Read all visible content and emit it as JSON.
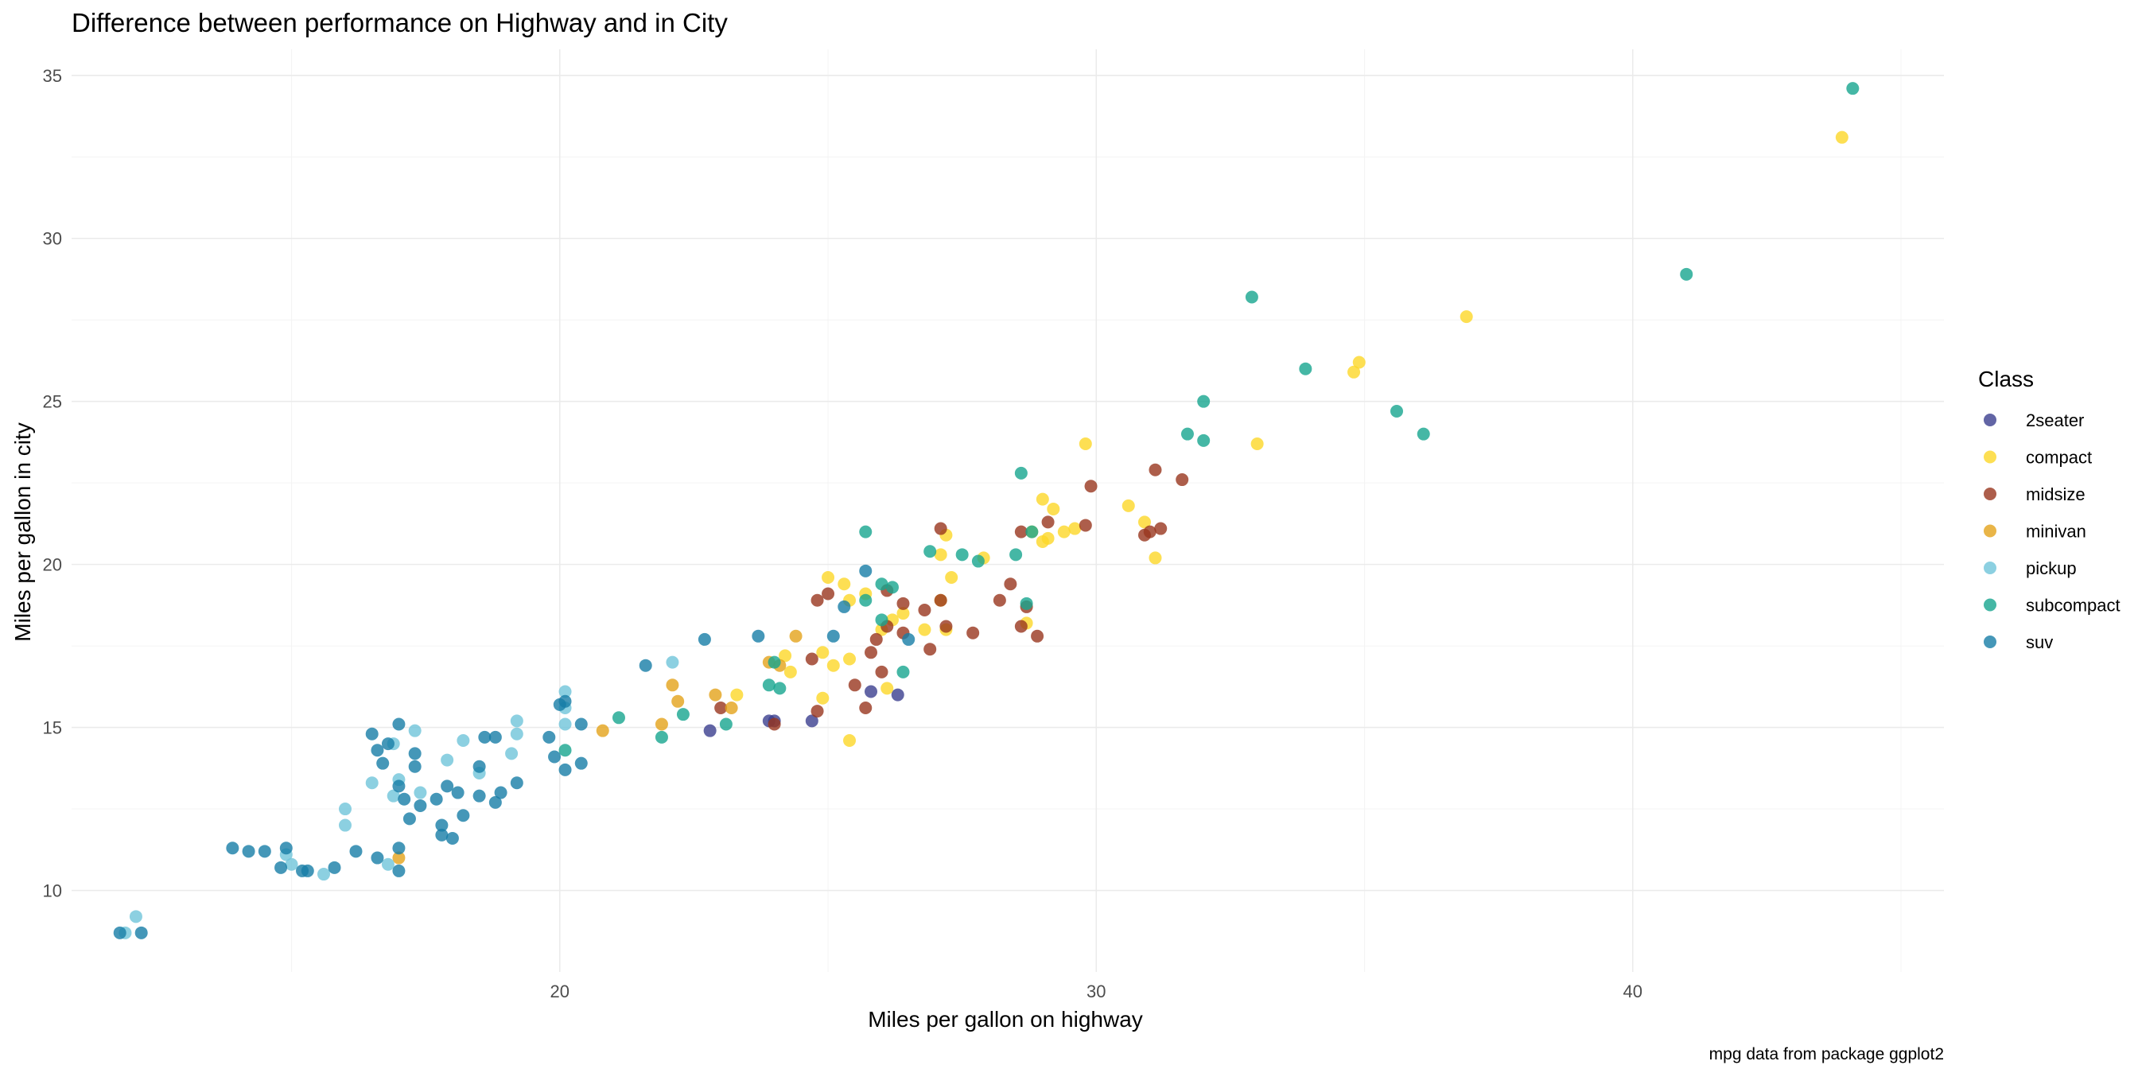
{
  "chart_data": {
    "type": "scatter",
    "title": "Difference between performance on Highway and in City",
    "xlabel": "Miles per gallon on highway",
    "ylabel": "Miles per gallon in city",
    "caption": "mpg data from package ggplot2",
    "xlim": [
      10.9,
      45.8
    ],
    "ylim": [
      7.5,
      35.8
    ],
    "x_ticks": [
      20,
      30,
      40
    ],
    "y_ticks": [
      10,
      15,
      20,
      25,
      30,
      35
    ],
    "x_minor_ticks": [
      15,
      25,
      35,
      45
    ],
    "y_minor_ticks": [
      12.5,
      17.5,
      22.5,
      27.5,
      32.5
    ],
    "grid": true,
    "point_alpha": 0.8,
    "legend": {
      "title": "Class",
      "position": "right",
      "entries": [
        {
          "label": "2seater",
          "color": "#3b3f8f"
        },
        {
          "label": "compact",
          "color": "#fdd728"
        },
        {
          "label": "midsize",
          "color": "#98361e"
        },
        {
          "label": "minivan",
          "color": "#e3a21a"
        },
        {
          "label": "pickup",
          "color": "#6fc4da"
        },
        {
          "label": "subcompact",
          "color": "#17a58f"
        },
        {
          "label": "suv",
          "color": "#177da6"
        }
      ]
    },
    "series": [
      {
        "name": "2seater",
        "color": "#3b3f8f",
        "points": [
          [
            24.0,
            15.2
          ],
          [
            23.9,
            15.2
          ],
          [
            22.8,
            14.9
          ],
          [
            25.8,
            16.1
          ],
          [
            26.3,
            16.0
          ],
          [
            24.7,
            15.2
          ]
        ]
      },
      {
        "name": "compact",
        "color": "#fdd728",
        "points": [
          [
            43.9,
            33.1
          ],
          [
            36.9,
            27.6
          ],
          [
            34.9,
            26.2
          ],
          [
            34.8,
            25.9
          ],
          [
            33.0,
            23.7
          ],
          [
            29.8,
            23.7
          ],
          [
            29.0,
            22.0
          ],
          [
            30.6,
            21.8
          ],
          [
            29.2,
            21.7
          ],
          [
            30.9,
            21.3
          ],
          [
            28.8,
            21.0
          ],
          [
            29.4,
            21.0
          ],
          [
            29.1,
            20.8
          ],
          [
            29.0,
            20.7
          ],
          [
            29.6,
            21.1
          ],
          [
            31.1,
            20.2
          ],
          [
            27.2,
            20.9
          ],
          [
            27.1,
            20.3
          ],
          [
            27.9,
            20.2
          ],
          [
            25.0,
            19.6
          ],
          [
            25.3,
            19.4
          ],
          [
            25.7,
            19.1
          ],
          [
            25.4,
            18.9
          ],
          [
            27.1,
            18.9
          ],
          [
            26.4,
            18.5
          ],
          [
            26.2,
            18.3
          ],
          [
            26.0,
            18.0
          ],
          [
            26.8,
            18.0
          ],
          [
            27.2,
            18.0
          ],
          [
            24.2,
            17.2
          ],
          [
            24.3,
            16.7
          ],
          [
            24.9,
            17.3
          ],
          [
            25.4,
            17.1
          ],
          [
            23.3,
            16.0
          ],
          [
            25.1,
            16.9
          ],
          [
            26.1,
            16.2
          ],
          [
            24.9,
            15.9
          ],
          [
            25.4,
            14.6
          ],
          [
            28.7,
            18.2
          ],
          [
            27.3,
            19.6
          ]
        ]
      },
      {
        "name": "midsize",
        "color": "#98361e",
        "points": [
          [
            29.9,
            22.4
          ],
          [
            31.1,
            22.9
          ],
          [
            31.6,
            22.6
          ],
          [
            31.0,
            21.0
          ],
          [
            31.2,
            21.1
          ],
          [
            30.9,
            20.9
          ],
          [
            28.6,
            21.0
          ],
          [
            29.1,
            21.3
          ],
          [
            29.8,
            21.2
          ],
          [
            27.1,
            21.1
          ],
          [
            24.8,
            18.9
          ],
          [
            25.0,
            19.1
          ],
          [
            26.1,
            19.2
          ],
          [
            26.4,
            18.8
          ],
          [
            26.8,
            18.6
          ],
          [
            27.1,
            18.9
          ],
          [
            28.2,
            18.9
          ],
          [
            28.4,
            19.4
          ],
          [
            28.7,
            18.7
          ],
          [
            28.9,
            17.8
          ],
          [
            28.6,
            18.1
          ],
          [
            27.7,
            17.9
          ],
          [
            27.2,
            18.1
          ],
          [
            26.1,
            18.1
          ],
          [
            25.9,
            17.7
          ],
          [
            26.4,
            17.9
          ],
          [
            26.9,
            17.4
          ],
          [
            24.7,
            17.1
          ],
          [
            25.8,
            17.3
          ],
          [
            26.0,
            16.7
          ],
          [
            25.5,
            16.3
          ],
          [
            25.7,
            15.6
          ],
          [
            24.8,
            15.5
          ],
          [
            23.0,
            15.6
          ],
          [
            24.0,
            15.1
          ]
        ]
      },
      {
        "name": "minivan",
        "color": "#e3a21a",
        "points": [
          [
            24.4,
            17.8
          ],
          [
            23.9,
            17.0
          ],
          [
            24.1,
            16.9
          ],
          [
            22.1,
            16.3
          ],
          [
            22.9,
            16.0
          ],
          [
            22.2,
            15.8
          ],
          [
            23.2,
            15.6
          ],
          [
            21.9,
            15.1
          ],
          [
            20.8,
            14.9
          ],
          [
            17.0,
            11.0
          ]
        ]
      },
      {
        "name": "pickup",
        "color": "#6fc4da",
        "points": [
          [
            20.1,
            16.1
          ],
          [
            20.1,
            15.6
          ],
          [
            19.2,
            15.2
          ],
          [
            20.1,
            15.1
          ],
          [
            22.1,
            17.0
          ],
          [
            17.3,
            14.9
          ],
          [
            18.2,
            14.6
          ],
          [
            16.9,
            14.5
          ],
          [
            17.9,
            14.0
          ],
          [
            19.1,
            14.2
          ],
          [
            18.5,
            13.6
          ],
          [
            19.2,
            14.8
          ],
          [
            17.0,
            13.4
          ],
          [
            17.4,
            13.0
          ],
          [
            16.9,
            12.9
          ],
          [
            16.5,
            13.3
          ],
          [
            16.0,
            12.5
          ],
          [
            16.0,
            12.0
          ],
          [
            15.6,
            10.5
          ],
          [
            15.0,
            10.8
          ],
          [
            14.9,
            11.1
          ],
          [
            16.8,
            10.8
          ],
          [
            12.1,
            9.2
          ],
          [
            11.9,
            8.7
          ]
        ]
      },
      {
        "name": "subcompact",
        "color": "#17a58f",
        "points": [
          [
            44.1,
            34.6
          ],
          [
            41.0,
            28.9
          ],
          [
            32.9,
            28.2
          ],
          [
            33.9,
            26.0
          ],
          [
            35.6,
            24.7
          ],
          [
            36.1,
            24.0
          ],
          [
            32.0,
            25.0
          ],
          [
            31.7,
            24.0
          ],
          [
            32.0,
            23.8
          ],
          [
            28.6,
            22.8
          ],
          [
            28.8,
            21.0
          ],
          [
            28.5,
            20.3
          ],
          [
            27.8,
            20.1
          ],
          [
            27.5,
            20.3
          ],
          [
            26.9,
            20.4
          ],
          [
            25.7,
            21.0
          ],
          [
            26.0,
            19.4
          ],
          [
            26.2,
            19.3
          ],
          [
            25.7,
            18.9
          ],
          [
            26.0,
            18.3
          ],
          [
            28.7,
            18.8
          ],
          [
            26.4,
            16.7
          ],
          [
            24.0,
            17.0
          ],
          [
            23.9,
            16.3
          ],
          [
            24.1,
            16.2
          ],
          [
            23.1,
            15.1
          ],
          [
            21.1,
            15.3
          ],
          [
            22.3,
            15.4
          ],
          [
            21.9,
            14.7
          ],
          [
            20.1,
            14.3
          ]
        ]
      },
      {
        "name": "suv",
        "color": "#177da6",
        "points": [
          [
            25.7,
            19.8
          ],
          [
            26.5,
            17.7
          ],
          [
            25.1,
            17.8
          ],
          [
            25.3,
            18.7
          ],
          [
            23.7,
            17.8
          ],
          [
            22.7,
            17.7
          ],
          [
            21.6,
            16.9
          ],
          [
            20.0,
            15.7
          ],
          [
            20.1,
            15.8
          ],
          [
            19.8,
            14.7
          ],
          [
            20.4,
            15.1
          ],
          [
            19.9,
            14.1
          ],
          [
            20.4,
            13.9
          ],
          [
            20.1,
            13.7
          ],
          [
            19.2,
            13.3
          ],
          [
            18.9,
            13.0
          ],
          [
            18.8,
            12.7
          ],
          [
            18.5,
            12.9
          ],
          [
            18.6,
            14.7
          ],
          [
            18.8,
            14.7
          ],
          [
            18.5,
            13.8
          ],
          [
            17.9,
            13.2
          ],
          [
            17.3,
            13.8
          ],
          [
            17.3,
            14.2
          ],
          [
            17.0,
            15.1
          ],
          [
            16.8,
            14.5
          ],
          [
            16.5,
            14.8
          ],
          [
            16.6,
            14.3
          ],
          [
            16.7,
            13.9
          ],
          [
            17.0,
            13.2
          ],
          [
            17.1,
            12.8
          ],
          [
            17.4,
            12.6
          ],
          [
            17.7,
            12.8
          ],
          [
            18.1,
            13.0
          ],
          [
            18.2,
            12.3
          ],
          [
            17.8,
            12.0
          ],
          [
            17.8,
            11.7
          ],
          [
            18.0,
            11.6
          ],
          [
            17.2,
            12.2
          ],
          [
            16.2,
            11.2
          ],
          [
            15.8,
            10.7
          ],
          [
            15.3,
            10.6
          ],
          [
            14.9,
            11.3
          ],
          [
            14.5,
            11.2
          ],
          [
            13.9,
            11.3
          ],
          [
            14.2,
            11.2
          ],
          [
            15.2,
            10.6
          ],
          [
            14.8,
            10.7
          ],
          [
            17.0,
            11.3
          ],
          [
            16.6,
            11.0
          ],
          [
            17.0,
            10.6
          ],
          [
            12.2,
            8.7
          ],
          [
            11.8,
            8.7
          ]
        ]
      }
    ]
  }
}
